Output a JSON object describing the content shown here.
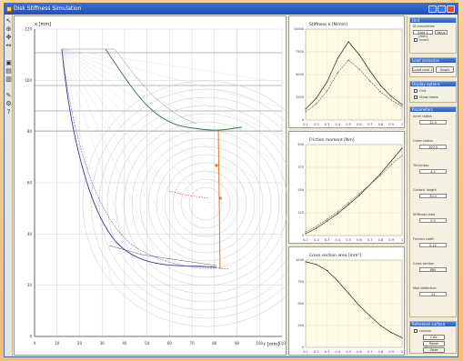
{
  "window": {
    "title": "Disk Stiffness Simulation"
  },
  "main_plot": {
    "y_axis_label": "x [mm]",
    "x_axis_label": "r [mm]",
    "y_ticks": [
      "120",
      "100",
      "80",
      "60",
      "40",
      "20",
      "0"
    ],
    "x_ticks": [
      "0",
      "10",
      "20",
      "30",
      "40",
      "50",
      "60",
      "70",
      "80",
      "90",
      "100",
      "110"
    ]
  },
  "chart_data": [
    {
      "type": "line",
      "title": "Stiffness k [N/mm]",
      "x": [
        0.1,
        0.2,
        0.3,
        0.4,
        0.5,
        0.6,
        0.7,
        0.8,
        0.9,
        1.0
      ],
      "series": [
        {
          "values": [
            1200,
            2400,
            4200,
            6800,
            8600,
            7200,
            5400,
            3800,
            2600,
            1700
          ]
        },
        {
          "values": [
            900,
            1800,
            3200,
            5200,
            6600,
            5600,
            4300,
            3100,
            2200,
            1500
          ]
        }
      ],
      "ylim": [
        0,
        10000
      ]
    },
    {
      "type": "line",
      "title": "Friction moment [Nm]",
      "x": [
        0.1,
        0.2,
        0.3,
        0.4,
        0.5,
        0.6,
        0.7,
        0.8,
        0.9,
        1.0
      ],
      "series": [
        {
          "values": [
            10,
            40,
            80,
            120,
            170,
            220,
            280,
            340,
            410,
            480
          ]
        },
        {
          "values": [
            20,
            50,
            90,
            130,
            180,
            230,
            280,
            330,
            390,
            440
          ]
        }
      ],
      "ylim": [
        0,
        500
      ]
    },
    {
      "type": "line",
      "title": "Cross section area [mm²]",
      "x": [
        0.1,
        0.2,
        0.3,
        0.4,
        0.5,
        0.6,
        0.7,
        0.8,
        0.9,
        1.0
      ],
      "series": [
        {
          "values": [
            980,
            950,
            880,
            760,
            620,
            480,
            360,
            250,
            170,
            110
          ]
        }
      ],
      "ylim": [
        0,
        1000
      ]
    }
  ],
  "sidepanel": {
    "unit_head": "Unit",
    "unit_option": "SI-convention",
    "unit_fields": [
      "Area 1 [mm]",
      "Value"
    ],
    "unit_check": "invert",
    "load_head": "Load scenarios",
    "load_buttons": [
      "Load case 1",
      "Single"
    ],
    "display_head": "Display options",
    "display_items": [
      "Grid",
      "Show labels"
    ],
    "params_head": "Parameters",
    "param_labels": [
      "Inner radius",
      "Outer radius",
      "Thickness",
      "Contact length",
      "Stiffness ratio",
      "Friction coeff.",
      "Cross section",
      "Max deflection"
    ],
    "param_values": [
      "12.0",
      "100.0",
      "4.2",
      "30.0",
      "0.5",
      "0.12",
      "860",
      "41"
    ],
    "ref_head": "Reference surface",
    "ref_option": "contour",
    "action_buttons": [
      "Calc",
      "Reset",
      "Save"
    ]
  }
}
